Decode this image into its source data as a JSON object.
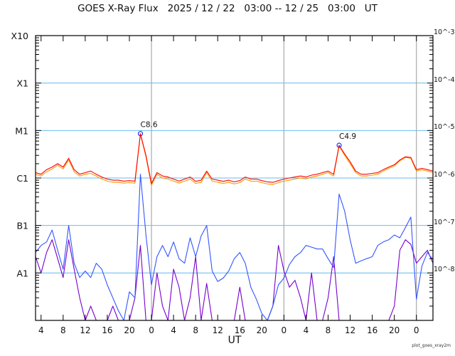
{
  "chart_data": {
    "type": "line",
    "title": "GOES X-Ray Flux   2025 / 12 / 22   03:00 -- 12 / 25   03:00   UT",
    "xlabel": "UT",
    "ylabel": "",
    "yscale": "log",
    "ylim": [
      1e-09,
      0.001
    ],
    "xlim": [
      "12/22 03:00",
      "12/25 03:00"
    ],
    "grid": "horizontal lines at each decade, vertical lines at 0 UT",
    "x_tick_labels": [
      "4",
      "8",
      "12",
      "16",
      "20",
      "0",
      "4",
      "8",
      "12",
      "16",
      "20",
      "0",
      "4",
      "8",
      "12",
      "16",
      "20",
      "0"
    ],
    "y_tick_labels_left": [
      "X10",
      "X1",
      "M1",
      "C1",
      "B1",
      "A1"
    ],
    "y_tick_labels_right": [
      "10^-3",
      "10^-4",
      "10^-5",
      "10^-6",
      "10^-7",
      "10^-8"
    ],
    "annotations": [
      {
        "text": "C8.6",
        "time": "12/22 22:00",
        "value": 8.6e-06
      },
      {
        "text": "C4.9",
        "time": "12/24 10:00",
        "value": 4.9e-06
      }
    ],
    "x": [
      "12/22 03:00",
      "12/22 04:00",
      "12/22 05:00",
      "12/22 06:00",
      "12/22 07:00",
      "12/22 08:00",
      "12/22 09:00",
      "12/22 10:00",
      "12/22 11:00",
      "12/22 12:00",
      "12/22 13:00",
      "12/22 14:00",
      "12/22 15:00",
      "12/22 16:00",
      "12/22 17:00",
      "12/22 18:00",
      "12/22 19:00",
      "12/22 20:00",
      "12/22 21:00",
      "12/22 22:00",
      "12/22 23:00",
      "12/23 00:00",
      "12/23 01:00",
      "12/23 02:00",
      "12/23 03:00",
      "12/23 04:00",
      "12/23 05:00",
      "12/23 06:00",
      "12/23 07:00",
      "12/23 08:00",
      "12/23 09:00",
      "12/23 10:00",
      "12/23 11:00",
      "12/23 12:00",
      "12/23 13:00",
      "12/23 14:00",
      "12/23 15:00",
      "12/23 16:00",
      "12/23 17:00",
      "12/23 18:00",
      "12/23 19:00",
      "12/23 20:00",
      "12/23 21:00",
      "12/23 22:00",
      "12/23 23:00",
      "12/24 00:00",
      "12/24 01:00",
      "12/24 02:00",
      "12/24 03:00",
      "12/24 04:00",
      "12/24 05:00",
      "12/24 06:00",
      "12/24 07:00",
      "12/24 08:00",
      "12/24 09:00",
      "12/24 10:00",
      "12/24 11:00",
      "12/24 12:00",
      "12/24 13:00",
      "12/24 14:00",
      "12/24 15:00",
      "12/24 16:00",
      "12/24 17:00",
      "12/24 18:00",
      "12/24 19:00",
      "12/24 20:00",
      "12/24 21:00",
      "12/24 22:00",
      "12/24 23:00",
      "12/25 00:00",
      "12/25 01:00",
      "12/25 02:00",
      "12/25 03:00"
    ],
    "series": [
      {
        "color": "#ff9900",
        "values": [
          1.2e-06,
          1.1e-06,
          1.35e-06,
          1.55e-06,
          1.85e-06,
          1.55e-06,
          2.4e-06,
          1.35e-06,
          1.1e-06,
          1.2e-06,
          1.25e-06,
          1.1e-06,
          9.5e-07,
          8.6e-07,
          8.1e-07,
          8.1e-07,
          7.8e-07,
          8e-07,
          7.8e-07,
          8.3e-06,
          2.8e-06,
          7e-07,
          1.2e-06,
          1e-06,
          9.5e-07,
          8.6e-07,
          7.8e-07,
          8.6e-07,
          9.5e-07,
          7.7e-07,
          8.1e-07,
          1.3e-06,
          8.6e-07,
          8.1e-07,
          7.7e-07,
          8.1e-07,
          7.5e-07,
          8e-07,
          9.5e-07,
          8.6e-07,
          8.6e-07,
          8e-07,
          7.5e-07,
          7.3e-07,
          8e-07,
          8.6e-07,
          9e-07,
          9.5e-07,
          1e-06,
          9.5e-07,
          1.05e-06,
          1.1e-06,
          1.2e-06,
          1.3e-06,
          1.1e-06,
          4.7e-06,
          3e-06,
          2e-06,
          1.3e-06,
          1.1e-06,
          1.1e-06,
          1.15e-06,
          1.2e-06,
          1.4e-06,
          1.6e-06,
          1.8e-06,
          2.3e-06,
          2.7e-06,
          2.6e-06,
          1.4e-06,
          1.5e-06,
          1.4e-06,
          1.3e-06
        ]
      },
      {
        "color": "#ff0000",
        "values": [
          1.3e-06,
          1.2e-06,
          1.5e-06,
          1.7e-06,
          2e-06,
          1.7e-06,
          2.6e-06,
          1.5e-06,
          1.2e-06,
          1.3e-06,
          1.4e-06,
          1.2e-06,
          1.05e-06,
          9.5e-07,
          9e-07,
          9e-07,
          8.6e-07,
          8.8e-07,
          8.6e-07,
          8.6e-06,
          3e-06,
          7.6e-07,
          1.3e-06,
          1.1e-06,
          1.05e-06,
          9.5e-07,
          8.6e-07,
          9.5e-07,
          1.05e-06,
          8.5e-07,
          9e-07,
          1.4e-06,
          9.5e-07,
          9e-07,
          8.5e-07,
          9e-07,
          8.3e-07,
          8.8e-07,
          1.05e-06,
          9.5e-07,
          9.5e-07,
          8.8e-07,
          8.3e-07,
          8.1e-07,
          8.8e-07,
          9.5e-07,
          1e-06,
          1.05e-06,
          1.1e-06,
          1.05e-06,
          1.15e-06,
          1.2e-06,
          1.3e-06,
          1.4e-06,
          1.2e-06,
          4.9e-06,
          3.2e-06,
          2.2e-06,
          1.4e-06,
          1.2e-06,
          1.2e-06,
          1.25e-06,
          1.3e-06,
          1.5e-06,
          1.7e-06,
          1.9e-06,
          2.4e-06,
          2.8e-06,
          2.7e-06,
          1.5e-06,
          1.6e-06,
          1.5e-06,
          1.4e-06
        ]
      },
      {
        "color": "#7700cc",
        "values": [
          2.2e-08,
          1e-08,
          2.7e-08,
          5e-08,
          2e-08,
          8e-09,
          5e-08,
          1.2e-08,
          3e-09,
          1e-09,
          2e-09,
          1e-09,
          1e-09,
          1e-09,
          2e-09,
          1e-09,
          1e-09,
          1e-09,
          3e-09,
          3.8e-08,
          1e-09,
          1e-09,
          1e-08,
          2e-09,
          1e-09,
          1.2e-08,
          5e-09,
          1e-09,
          3e-09,
          2.2e-08,
          1e-09,
          6e-09,
          1e-09,
          1e-09,
          1e-09,
          1e-09,
          1e-09,
          5e-09,
          1e-09,
          1e-09,
          1e-09,
          1e-09,
          1e-09,
          2e-09,
          3.8e-08,
          1.1e-08,
          5e-09,
          7e-09,
          3e-09,
          1e-09,
          1e-08,
          1e-09,
          1e-09,
          3e-09,
          2.2e-08,
          1e-09,
          1e-09,
          1e-09,
          1e-09,
          1e-09,
          1e-09,
          1e-09,
          1e-09,
          1e-09,
          1e-09,
          2e-09,
          3e-08,
          5e-08,
          4e-08,
          1.6e-08,
          2.2e-08,
          3e-08,
          1.6e-08
        ]
      },
      {
        "color": "#3355ff",
        "values": [
          2.7e-08,
          3.8e-08,
          4.5e-08,
          8e-08,
          3e-08,
          1.2e-08,
          1e-07,
          1.6e-08,
          8e-09,
          1.1e-08,
          8e-09,
          1.6e-08,
          1.2e-08,
          5.6e-09,
          3e-09,
          1.6e-09,
          1e-09,
          4e-09,
          3e-09,
          1.2e-06,
          6.3e-08,
          5.6e-09,
          2.2e-08,
          3.8e-08,
          2.2e-08,
          4.5e-08,
          2e-08,
          1.6e-08,
          5.5e-08,
          2.2e-08,
          6e-08,
          1e-07,
          1.1e-08,
          6.6e-09,
          7.8e-09,
          1.1e-08,
          2e-08,
          2.7e-08,
          1.6e-08,
          5e-09,
          2.8e-09,
          1.4e-09,
          1e-09,
          2e-09,
          5.6e-09,
          7.8e-09,
          1.5e-08,
          2.2e-08,
          2.7e-08,
          3.8e-08,
          3.5e-08,
          3.2e-08,
          3.2e-08,
          2e-08,
          1.3e-08,
          4.6e-07,
          2e-07,
          5e-08,
          1.6e-08,
          1.8e-08,
          2e-08,
          2.2e-08,
          3.8e-08,
          4.5e-08,
          5e-08,
          6.3e-08,
          5.5e-08,
          9e-08,
          1.5e-07,
          2.8e-09,
          1.4e-08,
          2.7e-08,
          1.9e-08
        ]
      }
    ],
    "colors": {
      "grid": "#66bbee",
      "day_line": "#aaaaaa",
      "peak_marker": "#2233ff"
    }
  },
  "footer": "plot_goes_xray2m"
}
